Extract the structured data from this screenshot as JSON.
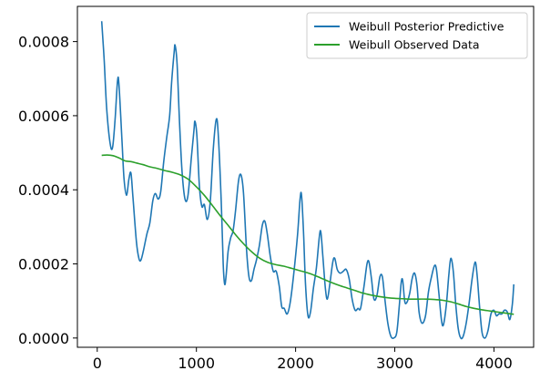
{
  "chart_data": {
    "type": "line",
    "title": "",
    "xlabel": "",
    "ylabel": "",
    "xlim": [
      -200,
      4400
    ],
    "ylim": [
      -2.5e-05,
      0.000895
    ],
    "grid": false,
    "legend_position": "top-right",
    "x_ticks": [
      0,
      1000,
      2000,
      3000,
      4000
    ],
    "x_tick_labels": [
      "0",
      "1000",
      "2000",
      "3000",
      "4000"
    ],
    "y_ticks": [
      0.0,
      0.0002,
      0.0004,
      0.0006,
      0.0008
    ],
    "y_tick_labels": [
      "0.0000",
      "0.0002",
      "0.0004",
      "0.0006",
      "0.0008"
    ],
    "series": [
      {
        "name": "Weibull Posterior Predictive",
        "color": "#1f77b4",
        "points": [
          [
            45,
            0.000855
          ],
          [
            70,
            0.00075
          ],
          [
            95,
            0.00062
          ],
          [
            130,
            0.000525
          ],
          [
            155,
            0.000515
          ],
          [
            180,
            0.00059
          ],
          [
            205,
            0.000695
          ],
          [
            220,
            0.00068
          ],
          [
            250,
            0.00053
          ],
          [
            270,
            0.00043
          ],
          [
            295,
            0.000385
          ],
          [
            320,
            0.00043
          ],
          [
            340,
            0.000445
          ],
          [
            360,
            0.00038
          ],
          [
            395,
            0.00026
          ],
          [
            420,
            0.000215
          ],
          [
            440,
            0.00021
          ],
          [
            465,
            0.000235
          ],
          [
            500,
            0.00028
          ],
          [
            530,
            0.00031
          ],
          [
            560,
            0.00037
          ],
          [
            585,
            0.00039
          ],
          [
            615,
            0.000375
          ],
          [
            640,
            0.000395
          ],
          [
            670,
            0.000475
          ],
          [
            700,
            0.00054
          ],
          [
            730,
            0.0006
          ],
          [
            750,
            0.00069
          ],
          [
            775,
            0.00077
          ],
          [
            785,
            0.00079
          ],
          [
            805,
            0.00074
          ],
          [
            830,
            0.00058
          ],
          [
            855,
            0.00045
          ],
          [
            885,
            0.000375
          ],
          [
            915,
            0.000385
          ],
          [
            950,
            0.00049
          ],
          [
            975,
            0.00056
          ],
          [
            985,
            0.000585
          ],
          [
            1005,
            0.000545
          ],
          [
            1030,
            0.00041
          ],
          [
            1055,
            0.000355
          ],
          [
            1080,
            0.00036
          ],
          [
            1110,
            0.00032
          ],
          [
            1140,
            0.00037
          ],
          [
            1170,
            0.00051
          ],
          [
            1200,
            0.00059
          ],
          [
            1220,
            0.00055
          ],
          [
            1250,
            0.00037
          ],
          [
            1270,
            0.0002
          ],
          [
            1285,
            0.000145
          ],
          [
            1300,
            0.00017
          ],
          [
            1320,
            0.000235
          ],
          [
            1345,
            0.00027
          ],
          [
            1370,
            0.00029
          ],
          [
            1395,
            0.000345
          ],
          [
            1425,
            0.000425
          ],
          [
            1450,
            0.00044
          ],
          [
            1475,
            0.00039
          ],
          [
            1505,
            0.00024
          ],
          [
            1530,
            0.000165
          ],
          [
            1555,
            0.000155
          ],
          [
            1580,
            0.000185
          ],
          [
            1605,
            0.00021
          ],
          [
            1635,
            0.00025
          ],
          [
            1665,
            0.000305
          ],
          [
            1690,
            0.000315
          ],
          [
            1715,
            0.00028
          ],
          [
            1745,
            0.00022
          ],
          [
            1775,
            0.00018
          ],
          [
            1805,
            0.00018
          ],
          [
            1835,
            0.00014
          ],
          [
            1860,
            8.5e-05
          ],
          [
            1885,
            8e-05
          ],
          [
            1915,
            6.5e-05
          ],
          [
            1945,
            9.5e-05
          ],
          [
            1980,
            0.00017
          ],
          [
            2020,
            0.00028
          ],
          [
            2045,
            0.000375
          ],
          [
            2060,
            0.000385
          ],
          [
            2080,
            0.000285
          ],
          [
            2100,
            0.000145
          ],
          [
            2125,
            6e-05
          ],
          [
            2150,
            7e-05
          ],
          [
            2180,
            0.000135
          ],
          [
            2210,
            0.00019
          ],
          [
            2240,
            0.000275
          ],
          [
            2255,
            0.000285
          ],
          [
            2275,
            0.00022
          ],
          [
            2300,
            0.000135
          ],
          [
            2320,
            0.000105
          ],
          [
            2345,
            0.000145
          ],
          [
            2375,
            0.000205
          ],
          [
            2395,
            0.000215
          ],
          [
            2420,
            0.000185
          ],
          [
            2450,
            0.000175
          ],
          [
            2480,
            0.00018
          ],
          [
            2510,
            0.000185
          ],
          [
            2540,
            0.00016
          ],
          [
            2570,
            0.000105
          ],
          [
            2600,
            7.5e-05
          ],
          [
            2630,
            8e-05
          ],
          [
            2655,
            8e-05
          ],
          [
            2690,
            0.00014
          ],
          [
            2720,
            0.0002
          ],
          [
            2740,
            0.000205
          ],
          [
            2765,
            0.00016
          ],
          [
            2790,
            0.000105
          ],
          [
            2820,
            0.000115
          ],
          [
            2850,
            0.000165
          ],
          [
            2875,
            0.000165
          ],
          [
            2900,
            0.000105
          ],
          [
            2930,
            4e-05
          ],
          [
            2960,
            5e-06
          ],
          [
            2990,
            0.0
          ],
          [
            3020,
            1.5e-05
          ],
          [
            3045,
            8.5e-05
          ],
          [
            3065,
            0.00015
          ],
          [
            3080,
            0.000155
          ],
          [
            3100,
            0.0001
          ],
          [
            3120,
            9.5e-05
          ],
          [
            3150,
            0.00012
          ],
          [
            3175,
            0.00016
          ],
          [
            3200,
            0.000175
          ],
          [
            3225,
            0.00014
          ],
          [
            3245,
            7e-05
          ],
          [
            3275,
            4e-05
          ],
          [
            3310,
            6e-05
          ],
          [
            3340,
            0.000125
          ],
          [
            3370,
            0.000165
          ],
          [
            3400,
            0.000195
          ],
          [
            3420,
            0.000185
          ],
          [
            3445,
            0.00012
          ],
          [
            3470,
            5e-05
          ],
          [
            3490,
            3.5e-05
          ],
          [
            3520,
            9e-05
          ],
          [
            3545,
            0.00017
          ],
          [
            3565,
            0.000215
          ],
          [
            3590,
            0.00018
          ],
          [
            3615,
            9e-05
          ],
          [
            3640,
            2.5e-05
          ],
          [
            3665,
            0.0
          ],
          [
            3690,
            5e-06
          ],
          [
            3720,
            4e-05
          ],
          [
            3750,
            9.5e-05
          ],
          [
            3780,
            0.00016
          ],
          [
            3810,
            0.000205
          ],
          [
            3830,
            0.00017
          ],
          [
            3855,
            8.5e-05
          ],
          [
            3880,
            1.5e-05
          ],
          [
            3910,
            0.0
          ],
          [
            3940,
            2e-05
          ],
          [
            3970,
            6.5e-05
          ],
          [
            4000,
            7.5e-05
          ],
          [
            4025,
            6e-05
          ],
          [
            4050,
            6.5e-05
          ],
          [
            4080,
            6.5e-05
          ],
          [
            4105,
            7.5e-05
          ],
          [
            4135,
            7e-05
          ],
          [
            4160,
            5e-05
          ],
          [
            4185,
            9e-05
          ],
          [
            4200,
            0.000145
          ]
        ]
      },
      {
        "name": "Weibull Observed Data",
        "color": "#2ca02c",
        "points": [
          [
            45,
            0.000493
          ],
          [
            100,
            0.000494
          ],
          [
            160,
            0.000492
          ],
          [
            220,
            0.000486
          ],
          [
            280,
            0.000478
          ],
          [
            340,
            0.000476
          ],
          [
            400,
            0.000472
          ],
          [
            460,
            0.000468
          ],
          [
            530,
            0.000462
          ],
          [
            600,
            0.000458
          ],
          [
            680,
            0.000452
          ],
          [
            760,
            0.000447
          ],
          [
            840,
            0.00044
          ],
          [
            920,
            0.000428
          ],
          [
            1000,
            0.000408
          ],
          [
            1080,
            0.000385
          ],
          [
            1160,
            0.000358
          ],
          [
            1240,
            0.00033
          ],
          [
            1320,
            0.000304
          ],
          [
            1400,
            0.000277
          ],
          [
            1480,
            0.000253
          ],
          [
            1560,
            0.000232
          ],
          [
            1640,
            0.000215
          ],
          [
            1720,
            0.000204
          ],
          [
            1800,
            0.000198
          ],
          [
            1880,
            0.000194
          ],
          [
            1960,
            0.000188
          ],
          [
            2040,
            0.000182
          ],
          [
            2120,
            0.000176
          ],
          [
            2200,
            0.000168
          ],
          [
            2280,
            0.000159
          ],
          [
            2360,
            0.00015
          ],
          [
            2440,
            0.000142
          ],
          [
            2520,
            0.000135
          ],
          [
            2600,
            0.000128
          ],
          [
            2680,
            0.000121
          ],
          [
            2760,
            0.000116
          ],
          [
            2840,
            0.000112
          ],
          [
            2920,
            0.000109
          ],
          [
            3000,
            0.000107
          ],
          [
            3080,
            0.000106
          ],
          [
            3160,
            0.000105
          ],
          [
            3240,
            0.000105
          ],
          [
            3320,
            0.000105
          ],
          [
            3400,
            0.000104
          ],
          [
            3480,
            0.000102
          ],
          [
            3560,
            9.8e-05
          ],
          [
            3640,
            9.2e-05
          ],
          [
            3720,
            8.5e-05
          ],
          [
            3800,
            8e-05
          ],
          [
            3880,
            7.6e-05
          ],
          [
            3960,
            7.3e-05
          ],
          [
            4040,
            7e-05
          ],
          [
            4120,
            6.7e-05
          ],
          [
            4200,
            6.4e-05
          ]
        ]
      }
    ]
  }
}
